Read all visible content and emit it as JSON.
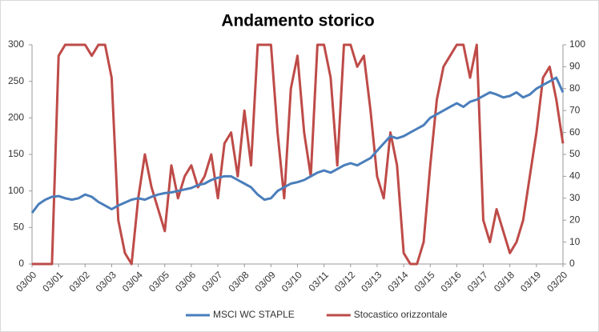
{
  "chart_data": {
    "type": "line",
    "title": "Andamento storico",
    "categories": [
      "03/00",
      null,
      null,
      null,
      "03/01",
      null,
      null,
      null,
      "03/02",
      null,
      null,
      null,
      "03/03",
      null,
      null,
      null,
      "03/04",
      null,
      null,
      null,
      "03/05",
      null,
      null,
      null,
      "03/06",
      null,
      null,
      null,
      "03/07",
      null,
      null,
      null,
      "03/08",
      null,
      null,
      null,
      "03/09",
      null,
      null,
      null,
      "03/10",
      null,
      null,
      null,
      "03/11",
      null,
      null,
      null,
      "03/12",
      null,
      null,
      null,
      "03/13",
      null,
      null,
      null,
      "03/14",
      null,
      null,
      null,
      "03/15",
      null,
      null,
      null,
      "03/16",
      null,
      null,
      null,
      "03/17",
      null,
      null,
      null,
      "03/18",
      null,
      null,
      null,
      "03/19",
      null,
      null,
      null,
      "03/20"
    ],
    "series": [
      {
        "name": "MSCI WC STAPLE",
        "color": "#4a7ebb",
        "values": [
          70,
          82,
          88,
          92,
          93,
          90,
          88,
          90,
          95,
          92,
          85,
          80,
          75,
          80,
          84,
          88,
          90,
          88,
          92,
          95,
          97,
          98,
          100,
          102,
          104,
          108,
          110,
          115,
          118,
          120,
          120,
          115,
          110,
          105,
          95,
          88,
          90,
          100,
          105,
          110,
          112,
          115,
          120,
          125,
          128,
          125,
          130,
          135,
          138,
          135,
          140,
          145,
          155,
          165,
          175,
          172,
          175,
          180,
          185,
          190,
          200,
          205,
          210,
          215,
          220,
          215,
          222,
          225,
          230,
          235,
          232,
          228,
          230,
          235,
          228,
          232,
          240,
          245,
          250,
          255,
          235
        ]
      },
      {
        "name": "Stocastico orizzontale",
        "color": "#be4b48",
        "axis": "y2",
        "values": [
          0,
          0,
          0,
          0,
          95,
          100,
          100,
          100,
          100,
          95,
          100,
          100,
          85,
          20,
          5,
          0,
          30,
          50,
          35,
          25,
          15,
          45,
          30,
          40,
          45,
          35,
          40,
          50,
          30,
          55,
          60,
          40,
          70,
          45,
          100,
          100,
          100,
          60,
          30,
          80,
          95,
          60,
          40,
          100,
          100,
          85,
          45,
          100,
          100,
          90,
          95,
          70,
          40,
          30,
          60,
          45,
          5,
          0,
          0,
          10,
          45,
          75,
          90,
          95,
          100,
          100,
          85,
          100,
          20,
          10,
          25,
          15,
          5,
          10,
          20,
          40,
          60,
          85,
          90,
          75,
          55
        ]
      }
    ],
    "ylim": [
      0,
      300
    ],
    "yticks": [
      0,
      50,
      100,
      150,
      200,
      250,
      300
    ],
    "y2lim": [
      0,
      100
    ],
    "y2ticks": [
      0,
      10,
      20,
      30,
      40,
      50,
      60,
      70,
      80,
      90,
      100
    ],
    "grid": false,
    "legend": "bottom"
  }
}
